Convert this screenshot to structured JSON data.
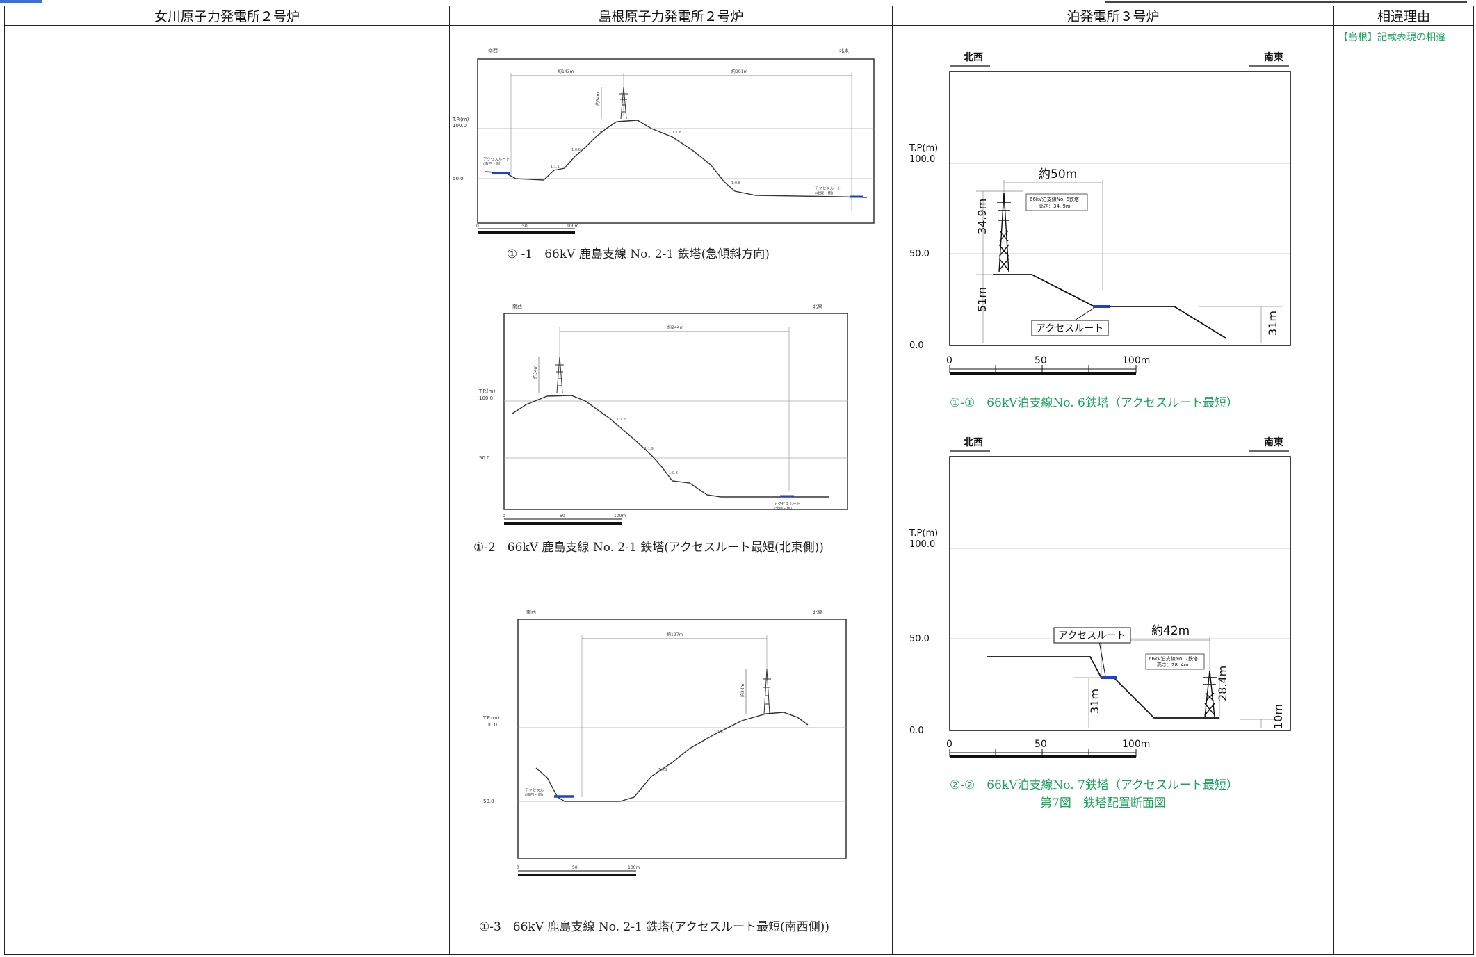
{
  "header": {
    "col1": "女川原子力発電所２号炉",
    "col2": "島根原子力発電所２号炉",
    "col3": "泊発電所３号炉",
    "col4": "相違理由"
  },
  "reason": {
    "text": "【島根】記載表現の相違"
  },
  "shimane": {
    "fig1": {
      "caption": "① -1　66kV 鹿島支線 No. 2-1 鉄塔(急傾斜方向)",
      "left_dir": "南西",
      "right_dir": "北東",
      "yaxis": "T.P.(m)",
      "y100": "100.0",
      "y50": "50.0",
      "dim1": "約143m",
      "dim2": "約291m",
      "height": "約34m",
      "slope1": "1:1.1",
      "slope2": "1:0.6",
      "slope3": "1:1.7",
      "slope4": "1:1.8",
      "slope5": "1:0.8",
      "access_left": "アクセスルート\n(南西・側)",
      "access_right": "アクセスルート\n(北東・側)",
      "scale0": "0",
      "scale50": "50",
      "scale100": "100m"
    },
    "fig2": {
      "caption": "①-2　66kV 鹿島支線 No. 2-1 鉄塔(アクセスルート最短(北東側))",
      "left_dir": "南西",
      "right_dir": "北東",
      "yaxis": "T.P.(m)",
      "y100": "100.0",
      "y50": "50.0",
      "dim1": "約244m",
      "height": "約34m",
      "slope1": "1:1.8",
      "slope2": "1:1.9",
      "slope3": "1:0.8",
      "access": "アクセスルート\n(北東・側)",
      "scale0": "0",
      "scale50": "50",
      "scale100": "100m"
    },
    "fig3": {
      "caption": "①-3　66kV 鹿島支線 No. 2-1 鉄塔(アクセスルート最短(南西側))",
      "left_dir": "南西",
      "right_dir": "北東",
      "yaxis": "T.P.(m)",
      "y100": "100.0",
      "y50": "50.0",
      "dim1": "約127m",
      "height": "約34m",
      "slope1": "1:0.9",
      "slope2": "1:1.8",
      "access": "アクセスルート\n(南西・側)",
      "scale0": "0",
      "scale50": "50",
      "scale100": "100m"
    }
  },
  "tomari": {
    "fig1": {
      "caption": "①-①　66kV泊支線No. 6鉄塔（アクセスルート最短）",
      "left_dir": "北西",
      "right_dir": "南東",
      "yaxis": "T.P(m)",
      "y100": "100.0",
      "y50": "50.0",
      "y0": "0.0",
      "dist": "約50m",
      "tower_h": "34.9m",
      "elev": "51m",
      "drop": "31m",
      "tower_label1": "66kV泊支線No. 6鉄塔",
      "tower_label2": "高さ：34. 9m",
      "access": "アクセスルート",
      "scale0": "0",
      "scale50": "50",
      "scale100": "100m"
    },
    "fig2": {
      "caption": "②-②　66kV泊支線No. 7鉄塔（アクセスルート最短）",
      "subcaption": "第7図　鉄塔配置断面図",
      "left_dir": "北西",
      "right_dir": "南東",
      "yaxis": "T.P(m)",
      "y100": "100.0",
      "y50": "50.0",
      "y0": "0.0",
      "dist": "約42m",
      "tower_h": "28.4m",
      "elev": "31m",
      "drop": "10m",
      "tower_label1": "66kV泊支線No. 7鉄塔",
      "tower_label2": "高さ：28. 4m",
      "access": "アクセスルート",
      "scale0": "0",
      "scale50": "50",
      "scale100": "100m"
    }
  },
  "colors": {
    "accent_green": "#1aa35a",
    "route_blue": "#1f3fd6",
    "topbar_blue": "#3a6fd8"
  }
}
